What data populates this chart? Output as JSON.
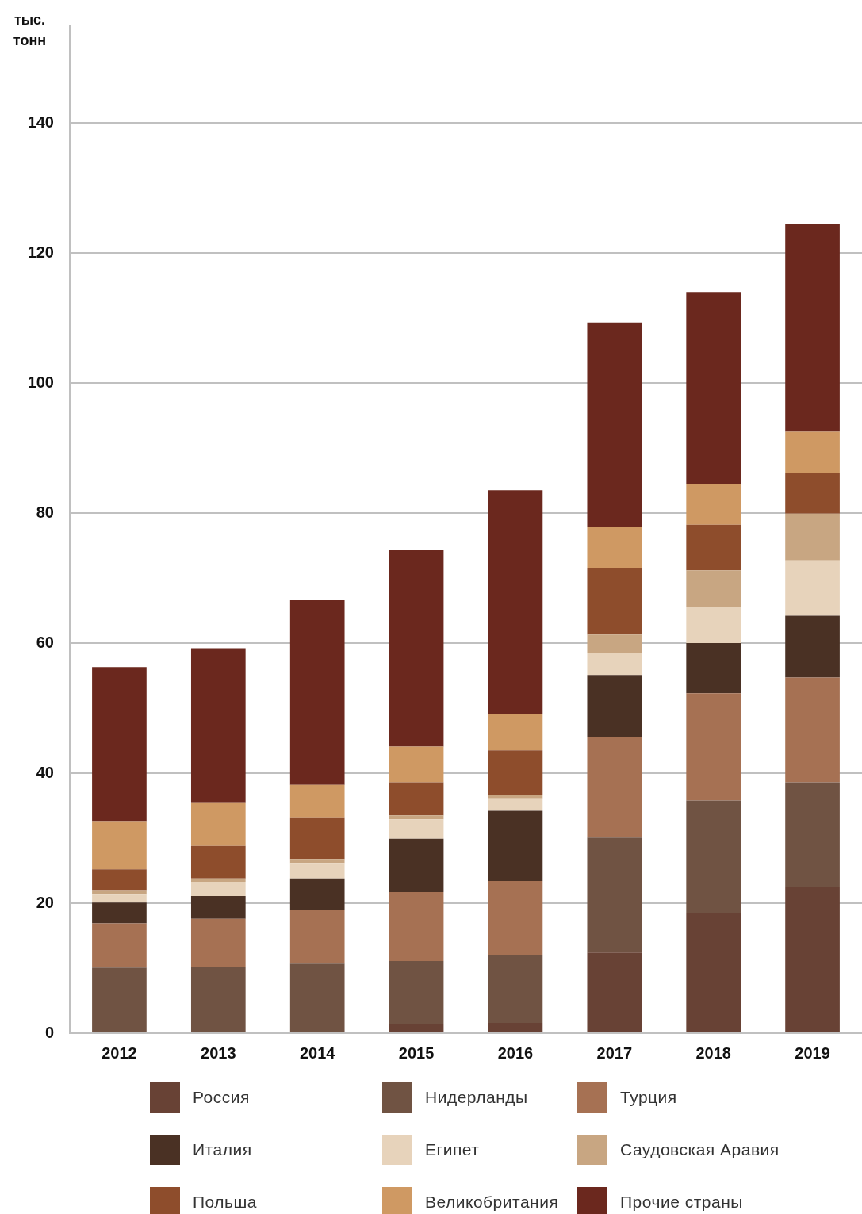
{
  "chart_data": {
    "type": "bar",
    "stacked": true,
    "ylabel": "тыс. тонн",
    "categories": [
      "2012",
      "2013",
      "2014",
      "2015",
      "2016",
      "2017",
      "2018",
      "2019"
    ],
    "series": [
      {
        "name": "Россия",
        "color": "#684235",
        "values": [
          0,
          0,
          0,
          1.4,
          1.6,
          12.4,
          18.5,
          22.5
        ]
      },
      {
        "name": "Нидерланды",
        "color": "#705343",
        "values": [
          10.1,
          10.2,
          10.7,
          9.7,
          10.4,
          17.7,
          17.3,
          16.1
        ]
      },
      {
        "name": "Турция",
        "color": "#a67153",
        "values": [
          6.8,
          7.4,
          8.3,
          10.6,
          11.4,
          15.4,
          16.5,
          16.1
        ]
      },
      {
        "name": "Италия",
        "color": "#4a3124",
        "values": [
          3.2,
          3.5,
          4.8,
          8.2,
          10.8,
          9.6,
          7.7,
          9.5
        ]
      },
      {
        "name": "Египет",
        "color": "#e7d3bb",
        "values": [
          1.2,
          2.2,
          2.4,
          3.0,
          1.8,
          3.3,
          5.5,
          8.5
        ]
      },
      {
        "name": "Саудовская Аравия",
        "color": "#c8a682",
        "values": [
          0.6,
          0.5,
          0.6,
          0.6,
          0.7,
          2.9,
          5.7,
          7.2
        ]
      },
      {
        "name": "Польша",
        "color": "#8e4d2c",
        "values": [
          3.3,
          5.0,
          6.4,
          5.1,
          6.8,
          10.3,
          7.0,
          6.3
        ]
      },
      {
        "name": "Великобритания",
        "color": "#cf9963",
        "values": [
          7.3,
          6.6,
          5.0,
          5.5,
          5.6,
          6.2,
          6.2,
          6.3
        ]
      },
      {
        "name": "Прочие страны",
        "color": "#6b281e",
        "values": [
          23.8,
          23.8,
          28.4,
          30.3,
          34.4,
          31.5,
          29.6,
          32.0
        ]
      }
    ],
    "ylim": [
      0,
      155
    ],
    "yticks": [
      0,
      20,
      40,
      60,
      80,
      100,
      120,
      140
    ],
    "grid": "y",
    "legend": "bottom"
  }
}
